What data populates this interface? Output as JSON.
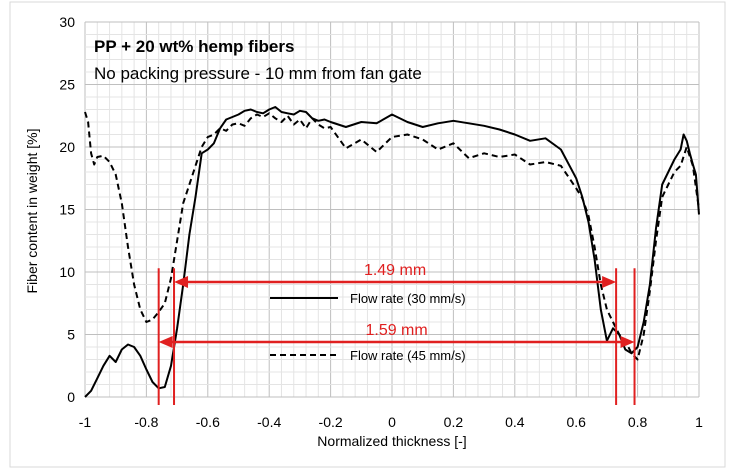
{
  "chart_data": {
    "type": "line",
    "title": "PP + 20 wt% hemp fibers",
    "subtitle": "No packing pressure - 10 mm from fan gate",
    "xlabel": "Normalized thickness [-]",
    "ylabel": "Fiber content in weight [%]",
    "xlim": [
      -1,
      1
    ],
    "ylim": [
      0,
      30
    ],
    "x_ticks": [
      -1,
      -0.8,
      -0.6,
      -0.4,
      -0.2,
      0,
      0.2,
      0.4,
      0.6,
      0.8,
      1
    ],
    "x_tick_labels": [
      "-1",
      "-0.8",
      "-0.6",
      "-0.4",
      "-0.2",
      "0",
      "0.2",
      "0.4",
      "0.6",
      "0.8",
      "1"
    ],
    "y_ticks": [
      0,
      5,
      10,
      15,
      20,
      25,
      30
    ],
    "y_tick_labels": [
      "0",
      "5",
      "10",
      "15",
      "20",
      "25",
      "30"
    ],
    "grid": true,
    "series": [
      {
        "name": "Flow rate (30 mm/s)",
        "style": "solid",
        "color": "#000000",
        "x": [
          -1,
          -0.98,
          -0.96,
          -0.94,
          -0.92,
          -0.9,
          -0.88,
          -0.86,
          -0.84,
          -0.82,
          -0.8,
          -0.78,
          -0.76,
          -0.74,
          -0.72,
          -0.7,
          -0.68,
          -0.66,
          -0.64,
          -0.62,
          -0.6,
          -0.58,
          -0.56,
          -0.54,
          -0.52,
          -0.5,
          -0.48,
          -0.46,
          -0.44,
          -0.42,
          -0.4,
          -0.38,
          -0.36,
          -0.34,
          -0.32,
          -0.3,
          -0.28,
          -0.26,
          -0.24,
          -0.22,
          -0.2,
          -0.15,
          -0.1,
          -0.05,
          0,
          0.05,
          0.1,
          0.15,
          0.2,
          0.25,
          0.3,
          0.35,
          0.4,
          0.45,
          0.5,
          0.55,
          0.6,
          0.62,
          0.64,
          0.66,
          0.68,
          0.7,
          0.72,
          0.74,
          0.76,
          0.78,
          0.8,
          0.82,
          0.84,
          0.86,
          0.88,
          0.9,
          0.92,
          0.94,
          0.95,
          0.96,
          0.97,
          0.98,
          0.99,
          1
        ],
        "values": [
          0,
          0.5,
          1.5,
          2.5,
          3.3,
          2.8,
          3.8,
          4.2,
          4.0,
          3.3,
          2.2,
          1.2,
          0.7,
          0.8,
          2.5,
          5.5,
          9,
          13,
          16,
          19.5,
          19.8,
          20.3,
          21.5,
          22.2,
          22.4,
          22.6,
          22.9,
          23.0,
          22.8,
          22.7,
          23.0,
          23.2,
          22.8,
          22.7,
          22.6,
          22.9,
          22.8,
          22.3,
          22.1,
          22.2,
          22.0,
          21.6,
          22.0,
          21.9,
          22.6,
          22.0,
          21.6,
          21.9,
          22.1,
          21.9,
          21.7,
          21.4,
          21.0,
          20.5,
          20.7,
          19.8,
          17.5,
          16.0,
          14.0,
          11.0,
          7.0,
          4.5,
          5.5,
          5.0,
          3.8,
          3.5,
          4.0,
          6.0,
          9.0,
          13.5,
          17.0,
          18.0,
          19.0,
          19.8,
          21.0,
          20.5,
          19.5,
          18.6,
          17.8,
          14.6
        ]
      },
      {
        "name": "Flow rate (45 mm/s)",
        "style": "dashed",
        "color": "#000000",
        "x": [
          -1,
          -0.99,
          -0.98,
          -0.97,
          -0.96,
          -0.94,
          -0.92,
          -0.9,
          -0.88,
          -0.86,
          -0.84,
          -0.82,
          -0.8,
          -0.78,
          -0.76,
          -0.74,
          -0.72,
          -0.7,
          -0.68,
          -0.66,
          -0.64,
          -0.62,
          -0.6,
          -0.58,
          -0.56,
          -0.54,
          -0.52,
          -0.5,
          -0.48,
          -0.46,
          -0.44,
          -0.42,
          -0.4,
          -0.38,
          -0.36,
          -0.34,
          -0.32,
          -0.3,
          -0.28,
          -0.26,
          -0.24,
          -0.22,
          -0.2,
          -0.15,
          -0.1,
          -0.05,
          0,
          0.05,
          0.1,
          0.15,
          0.2,
          0.25,
          0.3,
          0.35,
          0.4,
          0.45,
          0.5,
          0.55,
          0.6,
          0.62,
          0.64,
          0.66,
          0.68,
          0.7,
          0.72,
          0.74,
          0.76,
          0.78,
          0.8,
          0.82,
          0.84,
          0.86,
          0.88,
          0.9,
          0.92,
          0.94,
          0.96,
          0.98,
          1
        ],
        "values": [
          22.8,
          22.0,
          19.5,
          18.6,
          19.2,
          19.3,
          18.8,
          17.8,
          15.5,
          12.0,
          9.0,
          7.0,
          6.0,
          6.2,
          6.8,
          7.5,
          9.5,
          12.5,
          15.5,
          17.0,
          18.5,
          20.0,
          20.8,
          21.0,
          21.5,
          21.3,
          21.8,
          21.9,
          21.7,
          22.3,
          22.6,
          22.4,
          22.7,
          22.3,
          22.0,
          22.5,
          21.8,
          22.2,
          21.5,
          22.3,
          21.8,
          21.5,
          21.6,
          19.9,
          20.6,
          19.6,
          20.8,
          21.0,
          20.6,
          19.8,
          20.3,
          19.1,
          19.5,
          19.2,
          19.4,
          18.6,
          18.8,
          18.5,
          16.7,
          15.9,
          14.5,
          12.0,
          9.0,
          7.0,
          6.0,
          5.0,
          4.5,
          3.5,
          3.0,
          5.0,
          8.5,
          12.5,
          16.0,
          17.0,
          18.0,
          18.5,
          20.0,
          18.5,
          15.0
        ]
      }
    ],
    "legend": {
      "placement": "center-bottom",
      "entries": [
        "Flow rate (30 mm/s)",
        "Flow rate (45 mm/s)"
      ]
    },
    "annotations": [
      {
        "label": "1.49 mm",
        "x_start": -0.71,
        "x_end": 0.73,
        "y": 9.2,
        "color": "#e02020"
      },
      {
        "label": "1.59 mm",
        "x_start": -0.76,
        "x_end": 0.79,
        "y": 4.4,
        "color": "#e02020"
      }
    ],
    "vertical_markers": [
      {
        "x": -0.76,
        "y_top": 10.3,
        "color": "#e02020"
      },
      {
        "x": -0.71,
        "y_top": 10.3,
        "color": "#e02020"
      },
      {
        "x": 0.73,
        "y_top": 10.3,
        "color": "#e02020"
      },
      {
        "x": 0.79,
        "y_top": 10.3,
        "color": "#e02020"
      }
    ]
  }
}
